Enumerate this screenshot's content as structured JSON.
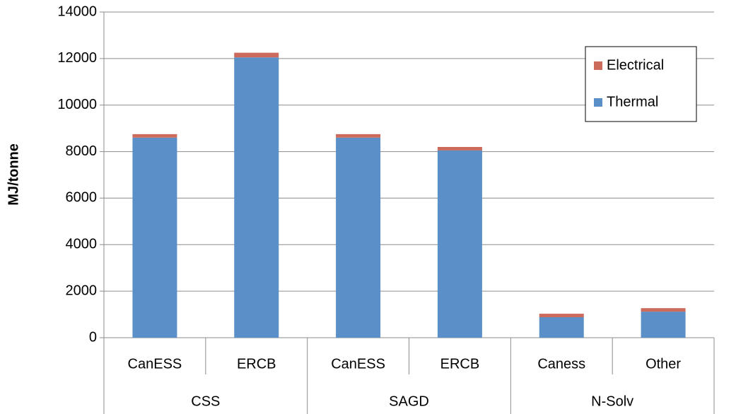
{
  "chart_data": {
    "type": "stacked-bar",
    "y_label": "MJ/tonne",
    "groups": [
      {
        "name": "CSS",
        "categories": [
          "CanESS",
          "ERCB"
        ]
      },
      {
        "name": "SAGD",
        "categories": [
          "CanESS",
          "ERCB"
        ]
      },
      {
        "name": "N-Solv",
        "categories": [
          "Caness",
          "Other"
        ]
      }
    ],
    "series": [
      {
        "name": "Thermal",
        "color": "#5b8fc7",
        "values": [
          8600,
          12050,
          8600,
          8050,
          880,
          1120
        ]
      },
      {
        "name": "Electrical",
        "color": "#cc6a5c",
        "values": [
          150,
          200,
          150,
          150,
          150,
          150
        ]
      }
    ],
    "ylim": [
      0,
      14000
    ],
    "yticks": [
      0,
      2000,
      4000,
      6000,
      8000,
      10000,
      12000,
      14000
    ],
    "grid": true,
    "legend": "top-right"
  }
}
